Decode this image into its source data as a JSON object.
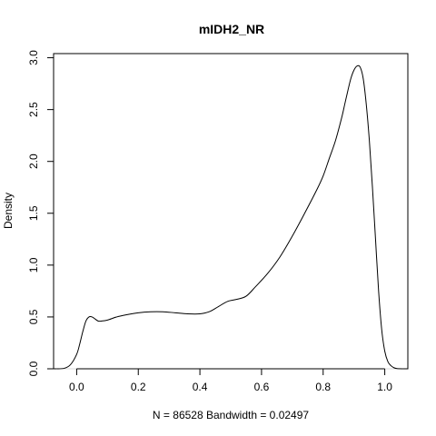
{
  "chart_data": {
    "type": "line",
    "title": "mIDH2_NR",
    "xlabel": "N = 86528   Bandwidth = 0.02497",
    "ylabel": "Density",
    "xlim": [
      -0.0749,
      1.0749
    ],
    "ylim": [
      0,
      3.04
    ],
    "x_ticks": [
      0.0,
      0.2,
      0.4,
      0.6,
      0.8,
      1.0
    ],
    "x_tick_labels": [
      "0.0",
      "0.2",
      "0.4",
      "0.6",
      "0.8",
      "1.0"
    ],
    "y_ticks": [
      0.0,
      0.5,
      1.0,
      1.5,
      2.0,
      2.5,
      3.0
    ],
    "y_tick_labels": [
      "0.0",
      "0.5",
      "1.0",
      "1.5",
      "2.0",
      "2.5",
      "3.0"
    ],
    "zero_line": true,
    "grid": false,
    "series": [
      {
        "name": "",
        "x": [
          -0.065,
          -0.04,
          -0.02,
          0.0,
          0.01,
          0.02,
          0.03,
          0.04,
          0.05,
          0.06,
          0.07,
          0.08,
          0.1,
          0.13,
          0.16,
          0.2,
          0.24,
          0.28,
          0.32,
          0.36,
          0.4,
          0.43,
          0.46,
          0.49,
          0.52,
          0.55,
          0.58,
          0.62,
          0.66,
          0.7,
          0.74,
          0.78,
          0.8,
          0.82,
          0.84,
          0.86,
          0.87,
          0.88,
          0.89,
          0.9,
          0.91,
          0.92,
          0.93,
          0.94,
          0.95,
          0.96,
          0.97,
          0.98,
          0.99,
          1.0,
          1.01,
          1.02,
          1.03,
          1.04,
          1.06
        ],
        "y": [
          0.0,
          0.005,
          0.04,
          0.14,
          0.24,
          0.36,
          0.46,
          0.5,
          0.5,
          0.48,
          0.46,
          0.46,
          0.47,
          0.5,
          0.52,
          0.54,
          0.55,
          0.55,
          0.54,
          0.53,
          0.53,
          0.55,
          0.6,
          0.65,
          0.67,
          0.7,
          0.79,
          0.92,
          1.08,
          1.28,
          1.5,
          1.73,
          1.86,
          2.03,
          2.2,
          2.42,
          2.55,
          2.68,
          2.8,
          2.88,
          2.92,
          2.91,
          2.8,
          2.55,
          2.2,
          1.75,
          1.25,
          0.75,
          0.38,
          0.17,
          0.07,
          0.03,
          0.01,
          0.002,
          0.0
        ]
      }
    ]
  }
}
